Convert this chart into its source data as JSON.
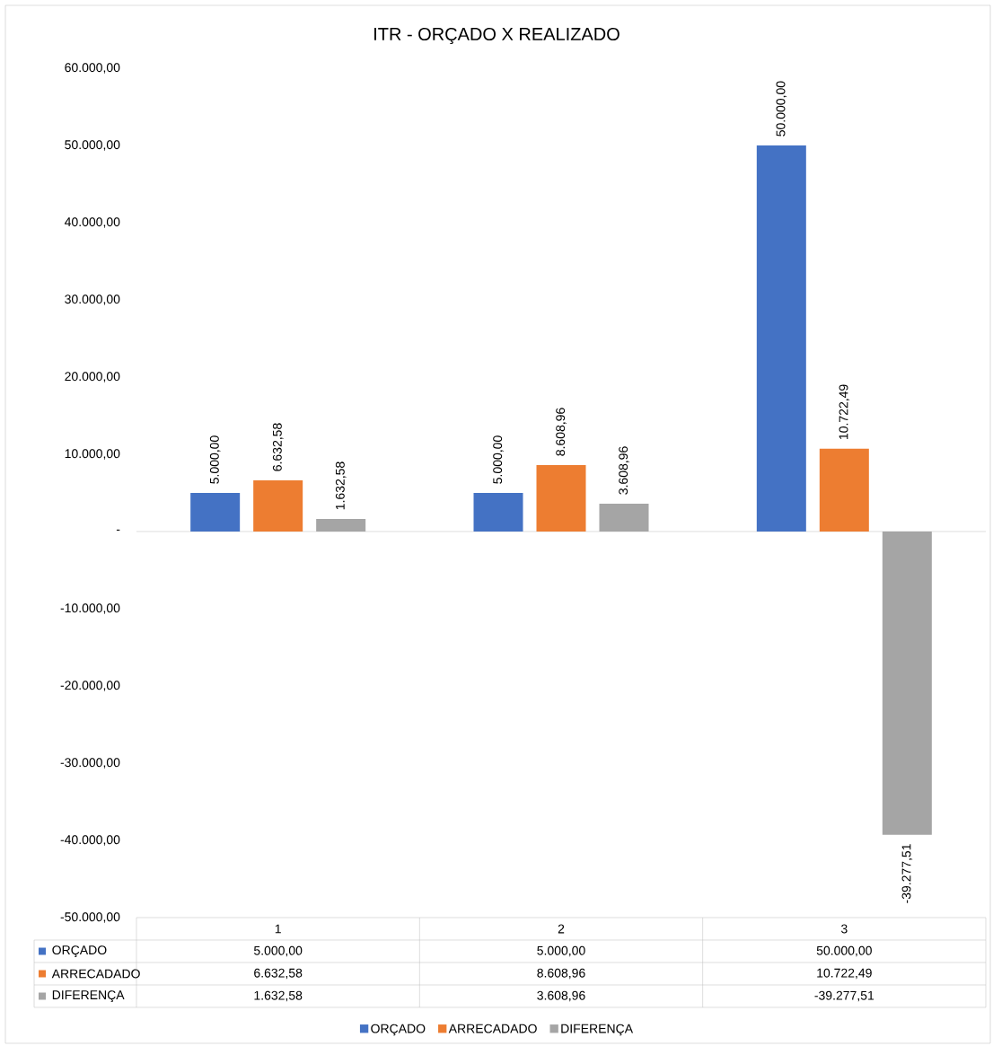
{
  "chart_data": {
    "type": "bar",
    "title": "ITR - ORÇADO X REALIZADO",
    "categories": [
      "1",
      "2",
      "3"
    ],
    "series": [
      {
        "name": "ORÇADO",
        "color": "#4472c4",
        "values": [
          5000,
          5000,
          50000
        ],
        "value_labels": [
          "5.000,00",
          "5.000,00",
          "50.000,00"
        ]
      },
      {
        "name": "ARRECADADO",
        "color": "#ed7d31",
        "values": [
          6632.58,
          8608.96,
          10722.49
        ],
        "value_labels": [
          "6.632,58",
          "8.608,96",
          "10.722,49"
        ]
      },
      {
        "name": "DIFERENÇA",
        "color": "#a5a5a5",
        "values": [
          1632.58,
          3608.96,
          -39277.51
        ],
        "value_labels": [
          "1.632,58",
          "3.608,96",
          "-39.277,51"
        ]
      }
    ],
    "ylim": [
      -50000,
      60000
    ],
    "yticks": [
      {
        "value": -50000,
        "label": "-50.000,00"
      },
      {
        "value": -40000,
        "label": "-40.000,00"
      },
      {
        "value": -30000,
        "label": "-30.000,00"
      },
      {
        "value": -20000,
        "label": "-20.000,00"
      },
      {
        "value": -10000,
        "label": "-10.000,00"
      },
      {
        "value": 0,
        "label": "-"
      },
      {
        "value": 10000,
        "label": "10.000,00"
      },
      {
        "value": 20000,
        "label": "20.000,00"
      },
      {
        "value": 30000,
        "label": "30.000,00"
      },
      {
        "value": 40000,
        "label": "40.000,00"
      },
      {
        "value": 50000,
        "label": "50.000,00"
      },
      {
        "value": 60000,
        "label": "60.000,00"
      }
    ],
    "legend": "bottom"
  }
}
